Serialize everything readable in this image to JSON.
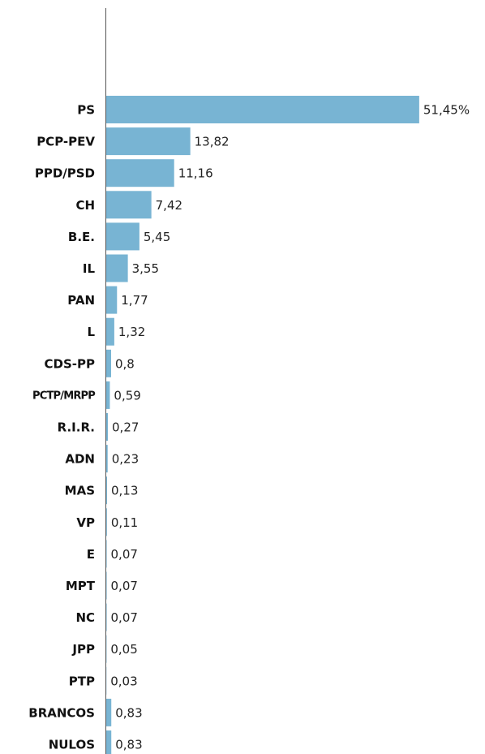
{
  "chart_data": {
    "type": "bar",
    "orientation": "horizontal",
    "categories": [
      "PS",
      "PCP-PEV",
      "PPD/PSD",
      "CH",
      "B.E.",
      "IL",
      "PAN",
      "L",
      "CDS-PP",
      "PCTP/MRPP",
      "R.I.R.",
      "ADN",
      "MAS",
      "VP",
      "E",
      "MPT",
      "NC",
      "JPP",
      "PTP",
      "BRANCOS",
      "NULOS"
    ],
    "values": [
      51.45,
      13.82,
      11.16,
      7.42,
      5.45,
      3.55,
      1.77,
      1.32,
      0.8,
      0.59,
      0.27,
      0.23,
      0.13,
      0.11,
      0.07,
      0.07,
      0.07,
      0.05,
      0.03,
      0.83,
      0.83
    ],
    "value_labels": [
      "51,45%",
      "13,82",
      "11,16",
      "7,42",
      "5,45",
      "3,55",
      "1,77",
      "1,32",
      "0,8",
      "0,59",
      "0,27",
      "0,23",
      "0,13",
      "0,11",
      "0,07",
      "0,07",
      "0,07",
      "0,05",
      "0,03",
      "0,83",
      "0,83"
    ],
    "color": "#78b4d3",
    "xlim": [
      0,
      52
    ]
  }
}
